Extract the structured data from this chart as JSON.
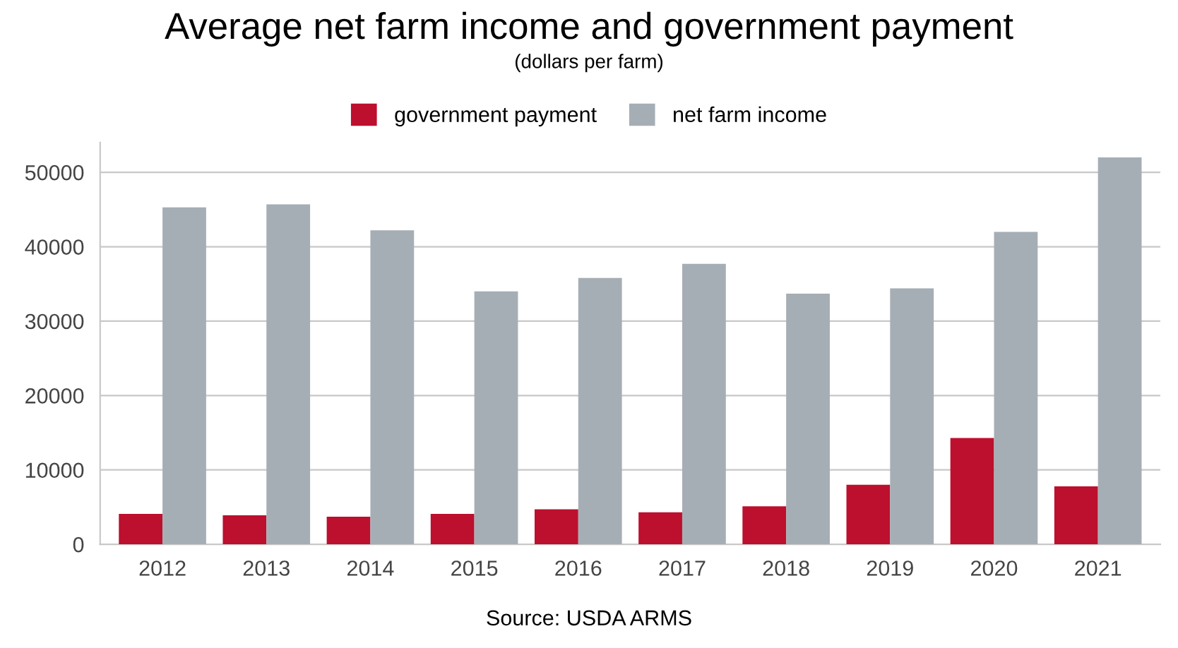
{
  "chart_data": {
    "type": "bar",
    "title": "Average net farm income and government payment",
    "subtitle": "(dollars per farm)",
    "categories": [
      "2012",
      "2013",
      "2014",
      "2015",
      "2016",
      "2017",
      "2018",
      "2019",
      "2020",
      "2021"
    ],
    "series": [
      {
        "name": "government payment",
        "color": "#bd0f2e",
        "values": [
          4100,
          3900,
          3700,
          4100,
          4700,
          4300,
          5100,
          8000,
          14300,
          7800
        ]
      },
      {
        "name": "net farm income",
        "color": "#a6aeb5",
        "values": [
          45300,
          45700,
          42200,
          34000,
          35800,
          37700,
          33700,
          34400,
          42000,
          52000
        ]
      }
    ],
    "ylim": [
      0,
      54000
    ],
    "yticks": [
      0,
      10000,
      20000,
      30000,
      40000,
      50000
    ],
    "grid": "y",
    "legend": "top",
    "annotations": [
      "Source: USDA ARMS"
    ]
  }
}
